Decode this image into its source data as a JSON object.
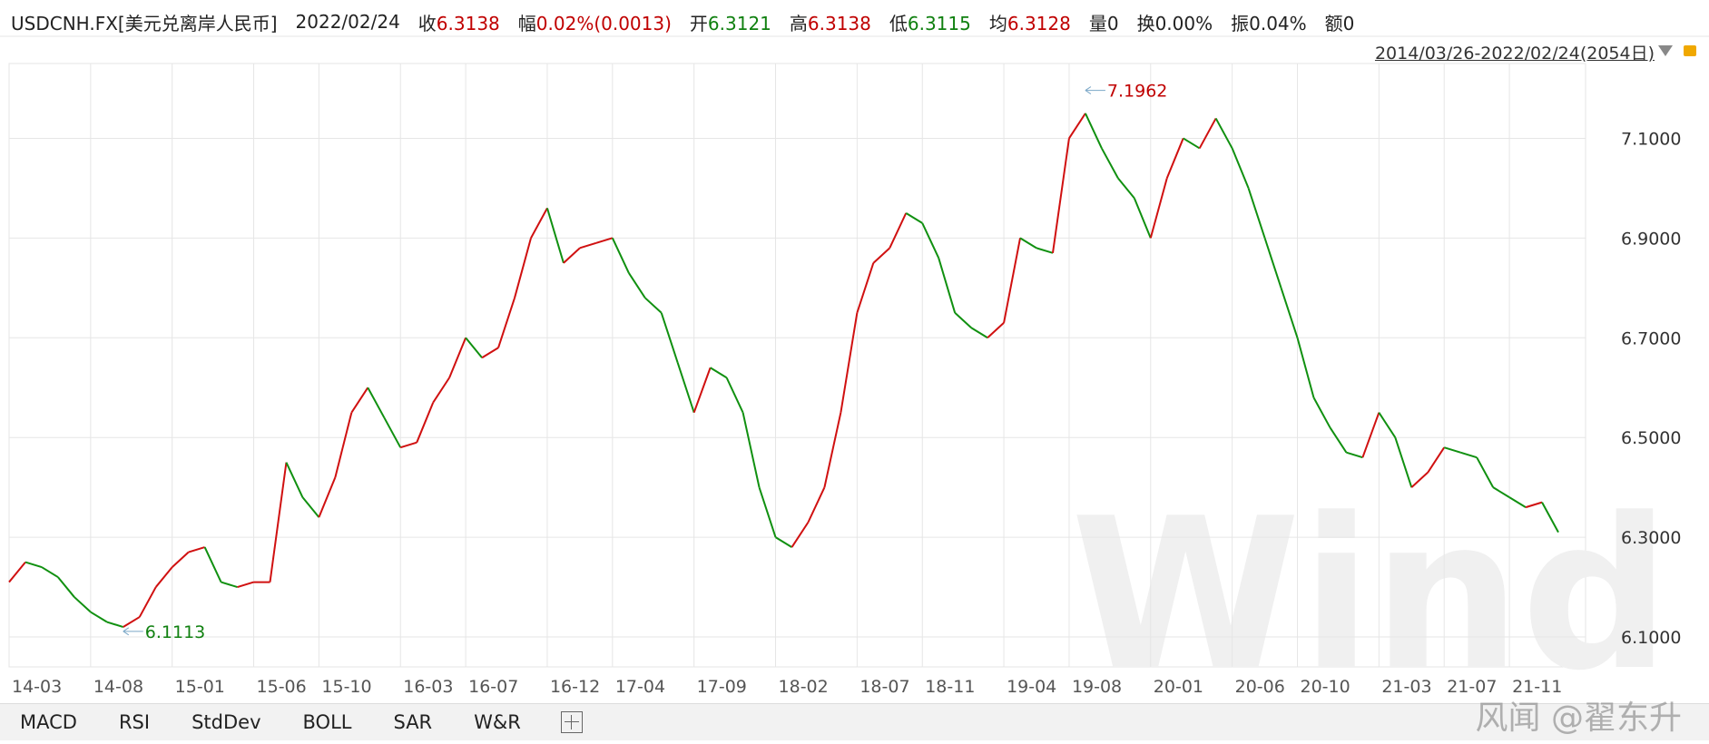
{
  "header": {
    "symbol": "USDCNH.FX[美元兑离岸人民币]",
    "date": "2022/02/24",
    "items": [
      {
        "label": "收",
        "value": "6.3138",
        "color": "#c00000"
      },
      {
        "label": "幅",
        "value": "0.02%(0.0013)",
        "color": "#c00000"
      },
      {
        "label": "开",
        "value": "6.3121",
        "color": "#108010"
      },
      {
        "label": "高",
        "value": "6.3138",
        "color": "#c00000"
      },
      {
        "label": "低",
        "value": "6.3115",
        "color": "#108010"
      },
      {
        "label": "均",
        "value": "6.3128",
        "color": "#c00000"
      },
      {
        "label": "量",
        "value": "0",
        "color": "#222222"
      },
      {
        "label": "换",
        "value": "0.00%",
        "color": "#222222"
      },
      {
        "label": "振",
        "value": "0.04%",
        "color": "#222222"
      },
      {
        "label": "额",
        "value": "0",
        "color": "#222222"
      }
    ],
    "range": "2014/03/26-2022/02/24(2054日)"
  },
  "chart_data": {
    "type": "line",
    "categories": [
      "14-03",
      null,
      null,
      null,
      null,
      "14-08",
      null,
      null,
      null,
      null,
      "15-01",
      null,
      null,
      null,
      null,
      "15-06",
      null,
      null,
      null,
      "15-10",
      null,
      null,
      null,
      null,
      "16-03",
      null,
      null,
      null,
      "16-07",
      null,
      null,
      null,
      null,
      "16-12",
      null,
      null,
      null,
      "17-04",
      null,
      null,
      null,
      null,
      "17-09",
      null,
      null,
      null,
      null,
      "18-02",
      null,
      null,
      null,
      null,
      "18-07",
      null,
      null,
      null,
      "18-11",
      null,
      null,
      null,
      null,
      "19-04",
      null,
      null,
      null,
      "19-08",
      null,
      null,
      null,
      null,
      "20-01",
      null,
      null,
      null,
      null,
      "20-06",
      null,
      null,
      null,
      "20-10",
      null,
      null,
      null,
      null,
      "21-03",
      null,
      null,
      null,
      "21-07",
      null,
      null,
      null,
      "21-11",
      null,
      null,
      null
    ],
    "series": [
      {
        "up_color": "#d01010",
        "down_color": "#109010",
        "values": [
          6.21,
          6.25,
          6.24,
          6.22,
          6.18,
          6.15,
          6.13,
          6.12,
          6.14,
          6.2,
          6.24,
          6.27,
          6.28,
          6.21,
          6.2,
          6.21,
          6.21,
          6.45,
          6.38,
          6.34,
          6.42,
          6.55,
          6.6,
          6.54,
          6.48,
          6.49,
          6.57,
          6.62,
          6.7,
          6.66,
          6.68,
          6.78,
          6.9,
          6.96,
          6.85,
          6.88,
          6.89,
          6.9,
          6.83,
          6.78,
          6.75,
          6.65,
          6.55,
          6.64,
          6.62,
          6.55,
          6.4,
          6.3,
          6.28,
          6.33,
          6.4,
          6.55,
          6.75,
          6.85,
          6.88,
          6.95,
          6.93,
          6.86,
          6.75,
          6.72,
          6.7,
          6.73,
          6.9,
          6.88,
          6.87,
          7.1,
          7.15,
          7.08,
          7.02,
          6.98,
          6.9,
          7.02,
          7.1,
          7.08,
          7.14,
          7.08,
          7.0,
          6.9,
          6.8,
          6.7,
          6.58,
          6.52,
          6.47,
          6.46,
          6.55,
          6.5,
          6.4,
          6.43,
          6.48,
          6.47,
          6.46,
          6.4,
          6.38,
          6.36,
          6.37,
          6.31
        ]
      }
    ],
    "annotations": {
      "max": 7.1962,
      "min": 6.1113,
      "max_color": "#c00000",
      "min_color": "#108010"
    },
    "ylim": [
      6.04,
      7.25
    ],
    "yticks": [
      {
        "value": 6.1,
        "label": "6.1000"
      },
      {
        "value": 6.3,
        "label": "6.3000"
      },
      {
        "value": 6.5,
        "label": "6.5000"
      },
      {
        "value": 6.7,
        "label": "6.7000"
      },
      {
        "value": 6.9,
        "label": "6.9000"
      },
      {
        "value": 7.1,
        "label": "7.1000"
      }
    ],
    "grid": true,
    "watermark": "Wind"
  },
  "tabs": [
    "MACD",
    "RSI",
    "StdDev",
    "BOLL",
    "SAR",
    "W&R"
  ],
  "credit": "风闻 @翟东升"
}
